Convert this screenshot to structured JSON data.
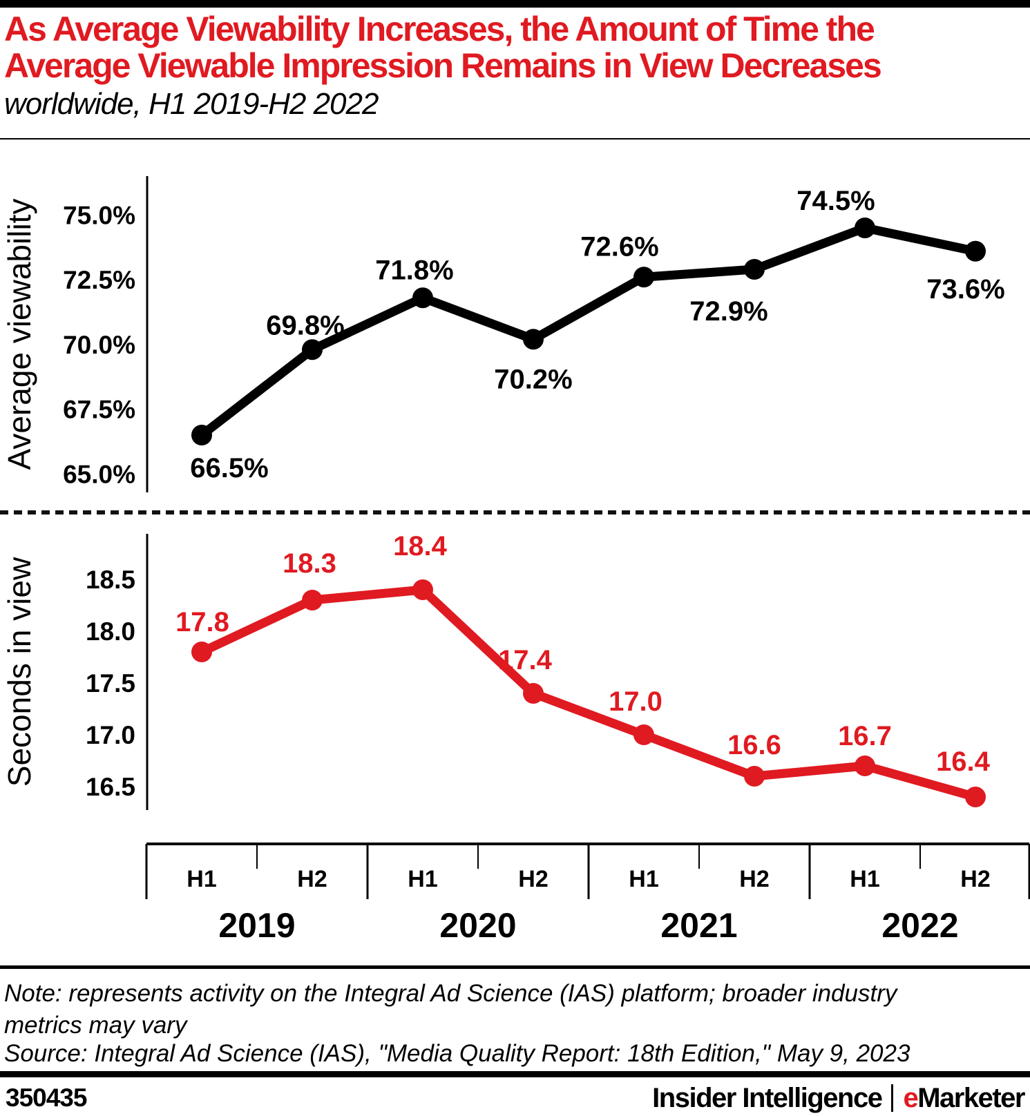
{
  "header": {
    "title_line1": "As Average Viewability Increases, the Amount of Time the",
    "title_line2": "Average Viewable Impression Remains in View Decreases",
    "subtitle": "worldwide, H1 2019-H2 2022"
  },
  "chart_data": [
    {
      "type": "line",
      "name": "average-viewability",
      "ylabel": "Average viewability",
      "categories": [
        "H1 2019",
        "H2 2019",
        "H1 2020",
        "H2 2020",
        "H1 2021",
        "H2 2021",
        "H1 2022",
        "H2 2022"
      ],
      "values": [
        66.5,
        69.8,
        71.8,
        70.2,
        72.6,
        72.9,
        74.5,
        73.6
      ],
      "point_labels": [
        "66.5%",
        "69.8%",
        "71.8%",
        "70.2%",
        "72.6%",
        "72.9%",
        "74.5%",
        "73.6%"
      ],
      "yticks": [
        "75.0%",
        "72.5%",
        "70.0%",
        "67.5%",
        "65.0%"
      ],
      "ylim": [
        64.5,
        76.0
      ],
      "line_color": "#000000",
      "grid": false,
      "legend": "none"
    },
    {
      "type": "line",
      "name": "seconds-in-view",
      "ylabel": "Seconds in view",
      "categories": [
        "H1 2019",
        "H2 2019",
        "H1 2020",
        "H2 2020",
        "H1 2021",
        "H2 2021",
        "H1 2022",
        "H2 2022"
      ],
      "values": [
        17.8,
        18.3,
        18.4,
        17.4,
        17.0,
        16.6,
        16.7,
        16.4
      ],
      "point_labels": [
        "17.8",
        "18.3",
        "18.4",
        "17.4",
        "17.0",
        "16.6",
        "16.7",
        "16.4"
      ],
      "yticks": [
        "18.5",
        "18.0",
        "17.5",
        "17.0",
        "16.5"
      ],
      "ylim": [
        16.1,
        18.8
      ],
      "line_color": "#e01a21",
      "grid": false,
      "legend": "none"
    }
  ],
  "x_axis": {
    "half_labels": [
      "H1",
      "H2",
      "H1",
      "H2",
      "H1",
      "H2",
      "H1",
      "H2"
    ],
    "year_labels": [
      "2019",
      "2020",
      "2021",
      "2022"
    ]
  },
  "notes": {
    "note": "Note: represents activity on the Integral Ad Science (IAS) platform; broader industry metrics may vary",
    "source": "Source: Integral Ad Science (IAS), \"Media Quality Report: 18th Edition,\" May 9, 2023"
  },
  "footer": {
    "chart_id": "350435",
    "brand_primary": "Insider Intelligence",
    "brand_e": "e",
    "brand_rest": "Marketer"
  },
  "colors": {
    "accent_red": "#e01a21",
    "ink": "#000000"
  }
}
